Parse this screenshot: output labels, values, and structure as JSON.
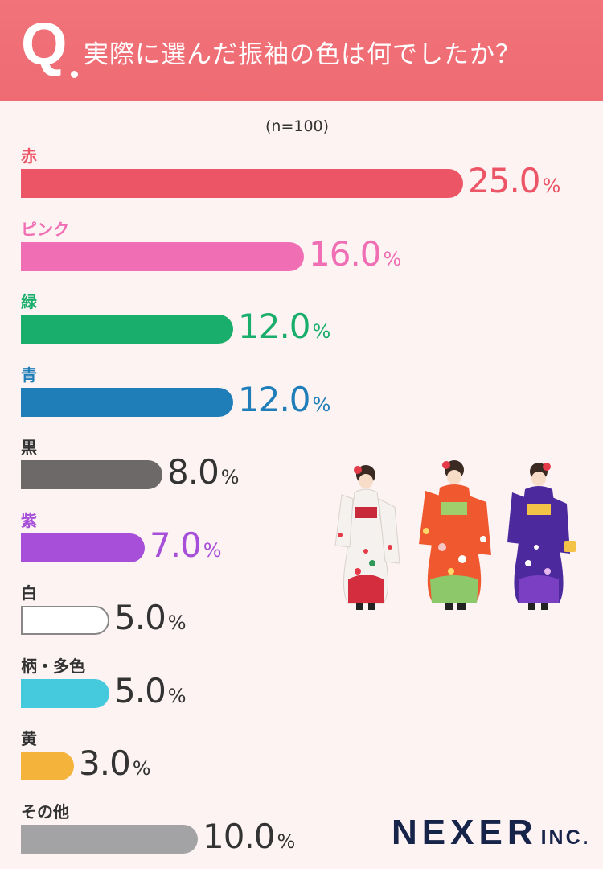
{
  "header": {
    "q_mark": "Q",
    "question": "実際に選んだ振袖の色は何でしたか？"
  },
  "sample_note": "(n=100)",
  "chart_data": {
    "type": "bar",
    "orientation": "horizontal",
    "unit": "%",
    "categories": [
      "赤",
      "ピンク",
      "緑",
      "青",
      "黒",
      "紫",
      "白",
      "柄・多色",
      "黄",
      "その他"
    ],
    "values": [
      25.0,
      16.0,
      12.0,
      12.0,
      8.0,
      7.0,
      5.0,
      5.0,
      3.0,
      10.0
    ],
    "value_labels": [
      "25.0",
      "16.0",
      "12.0",
      "12.0",
      "8.0",
      "7.0",
      "5.0",
      "5.0",
      "3.0",
      "10.0"
    ],
    "colors": [
      "#ec5566",
      "#f06fb4",
      "#19ae6b",
      "#1f7db8",
      "#6c6968",
      "#a74fd8",
      "#ffffff",
      "#45c9dd",
      "#f4b43c",
      "#a3a3a6"
    ],
    "label_colors": [
      "#ec5566",
      "#f06fb4",
      "#19ae6b",
      "#1f7db8",
      "#333333",
      "#a74fd8",
      "#333333",
      "#333333",
      "#333333",
      "#333333"
    ],
    "legend": "none",
    "grid": false
  },
  "illustration": {
    "icon": "kimono-women-illustration"
  },
  "brand": {
    "name": "NEXER",
    "suffix": "INC."
  }
}
